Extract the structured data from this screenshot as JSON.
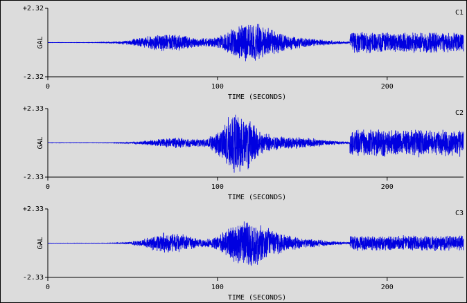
{
  "colors": {
    "background": "#dcdcdc",
    "trace": "#0000e0",
    "axis": "#000000"
  },
  "chart_data": [
    {
      "type": "line",
      "channel": "C1",
      "ylabel": "GAL",
      "xlabel": "TIME (SECONDS)",
      "yticks": [
        "+2.32",
        "-2.32"
      ],
      "ylim": [
        -2.32,
        2.32
      ],
      "xlim": [
        0,
        245
      ],
      "xticks": [
        0,
        100,
        200
      ],
      "xtick_labels": [
        "0",
        "100",
        "200"
      ],
      "trace": {
        "quiet_until": 50,
        "noise_floor": 0.03,
        "bursts": [
          {
            "t": 70,
            "width": 20,
            "amp": 0.6
          },
          {
            "t": 118,
            "width": 16,
            "amp": 1.2
          },
          {
            "t": 140,
            "width": 25,
            "amp": 0.4
          }
        ],
        "sustained_from": 178,
        "sustained_amp": 0.75,
        "seed": 11
      }
    },
    {
      "type": "line",
      "channel": "C2",
      "ylabel": "GAL",
      "xlabel": "TIME (SECONDS)",
      "yticks": [
        "+2.33",
        "-2.33"
      ],
      "ylim": [
        -2.33,
        2.33
      ],
      "xlim": [
        0,
        245
      ],
      "xticks": [
        0,
        100,
        200
      ],
      "xtick_labels": [
        "0",
        "100",
        "200"
      ],
      "trace": {
        "quiet_until": 50,
        "noise_floor": 0.03,
        "bursts": [
          {
            "t": 75,
            "width": 18,
            "amp": 0.35
          },
          {
            "t": 112,
            "width": 12,
            "amp": 2.1
          },
          {
            "t": 140,
            "width": 25,
            "amp": 0.45
          }
        ],
        "sustained_from": 178,
        "sustained_amp": 1.0,
        "seed": 29
      }
    },
    {
      "type": "line",
      "channel": "C3",
      "ylabel": "GAL",
      "xlabel": "TIME (SECONDS)",
      "yticks": [
        "+2.33",
        "-2.33"
      ],
      "ylim": [
        -2.33,
        2.33
      ],
      "xlim": [
        0,
        245
      ],
      "xticks": [
        0,
        100,
        200
      ],
      "xtick_labels": [
        "0",
        "100",
        "200"
      ],
      "trace": {
        "quiet_until": 50,
        "noise_floor": 0.03,
        "bursts": [
          {
            "t": 72,
            "width": 16,
            "amp": 0.75
          },
          {
            "t": 118,
            "width": 16,
            "amp": 1.7
          },
          {
            "t": 145,
            "width": 22,
            "amp": 0.35
          }
        ],
        "sustained_from": 178,
        "sustained_amp": 0.55,
        "seed": 47
      }
    }
  ]
}
